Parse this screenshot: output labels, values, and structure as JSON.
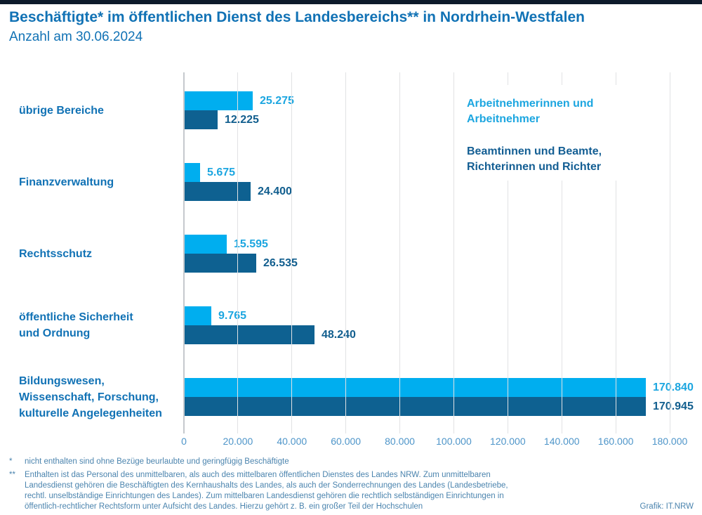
{
  "page": {
    "footnote1_marker": "*",
    "footnote1": "nicht enthalten sind ohne Bezüge beurlaubte und geringfügig Beschäftigte",
    "footnote2_marker": "**",
    "footnote2": "Enthalten ist das Personal des unmittelbaren, als auch des mittelbaren öffentlichen Dienstes des Landes NRW. Zum unmittelbaren\nLandesdienst gehören die Beschäftigten des Kernhaushalts des Landes, als auch der Sonderrechnungen des Landes (Landesbetriebe,\nrechtl. unselbständige Einrichtungen des Landes). Zum mittelbaren Landesdienst gehören die rechtlich selbständigen Einrichtungen in\nöffentlich-rechtlicher Rechtsform unter Aufsicht des Landes. Hierzu gehört z. B. ein großer Teil der Hochschulen",
    "credit": "Grafik: IT.NRW"
  },
  "colors": {
    "top_bar": "#0d1b2b",
    "title_blue": "#1172b5",
    "series_light": "#00aeef",
    "series_dark": "#0e6191",
    "category_label": "#1172b5",
    "tick_label": "#4e95c9",
    "gridline": "#e1e2e4",
    "zero_line": "#c5c9cd",
    "footnote": "#4b84ae"
  },
  "chart_data": {
    "type": "bar",
    "orientation": "horizontal",
    "title": "Beschäftigte* im öffentlichen Dienst des Landesbereichs** in Nordrhein-Westfalen",
    "subtitle": "Anzahl am 30.06.2024",
    "categories": [
      "übrige Bereiche",
      "Finanzverwaltung",
      "Rechtsschutz",
      "öffentliche Sicherheit und Ordnung",
      "Bildungswesen, Wissenschaft, Forschung, kulturelle Angelegenheiten"
    ],
    "category_labels": [
      "übrige Bereiche",
      "Finanzverwaltung",
      "Rechtsschutz",
      "öffentliche Sicherheit\nund Ordnung",
      "Bildungswesen,\nWissenschaft, Forschung,\nkulturelle Angelegenheiten"
    ],
    "series": [
      {
        "name": "Arbeitnehmerinnen und Arbeitnehmer",
        "legend_label": "Arbeitnehmerinnen und\nArbeitnehmer",
        "color": "#00aeef",
        "label_color": "#1ca6e0",
        "values": [
          25275,
          5675,
          15595,
          9765,
          170840
        ],
        "labels": [
          "25.275",
          "5.675",
          "15.595",
          "9.765",
          "170.840"
        ]
      },
      {
        "name": "Beamtinnen und Beamte, Richterinnen und Richter",
        "legend_label": "Beamtinnen und Beamte,\nRichterinnen und Richter",
        "color": "#0e6191",
        "label_color": "#115e8e",
        "values": [
          12225,
          24400,
          26535,
          48240,
          170945
        ],
        "labels": [
          "12.225",
          "24.400",
          "26.535",
          "48.240",
          "170.945"
        ]
      }
    ],
    "x_axis": {
      "min": 0,
      "max": 180000,
      "tick_interval": 20000,
      "tick_labels": [
        "0",
        "20.000",
        "40.000",
        "60.000",
        "80.000",
        "100.000",
        "120.000",
        "140.000",
        "160.000",
        "180.000"
      ]
    },
    "grid": true,
    "legend_position": "top-right"
  }
}
